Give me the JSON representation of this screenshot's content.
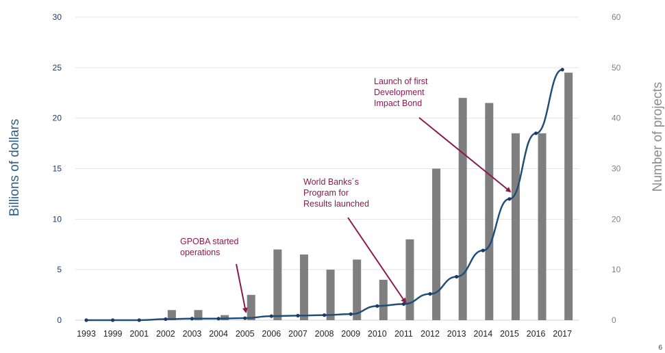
{
  "chart_data": {
    "type": "bar+line",
    "categories": [
      "1993",
      "1999",
      "2001",
      "2002",
      "2003",
      "2004",
      "2005",
      "2006",
      "2007",
      "2008",
      "2009",
      "2010",
      "2011",
      "2012",
      "2013",
      "2014",
      "2015",
      "2016",
      "2017"
    ],
    "bars": {
      "axis": "right",
      "color": "#7f7f7f",
      "values": [
        0,
        0,
        0,
        2,
        2,
        1,
        5,
        14,
        13,
        10,
        12,
        8,
        16,
        30,
        44,
        43,
        37,
        37,
        49
      ]
    },
    "line": {
      "axis": "left",
      "color": "#1f4e79",
      "values": [
        0,
        0,
        0,
        0.1,
        0.15,
        0.15,
        0.2,
        0.4,
        0.45,
        0.5,
        0.6,
        1.4,
        1.6,
        2.6,
        4.3,
        6.9,
        12.0,
        18.5,
        24.8
      ]
    },
    "ylabel_left": "Billions of dollars",
    "ylabel_right": "Number of projects",
    "ylim_left": [
      0,
      30
    ],
    "yticks_left": [
      "0",
      "5",
      "10",
      "15",
      "20",
      "25",
      "30"
    ],
    "ylim_right": [
      0,
      60
    ],
    "yticks_right": [
      "0",
      "10",
      "20",
      "30",
      "40",
      "50",
      "60"
    ],
    "grid": true,
    "annotations": [
      {
        "lines": [
          "GPOBA started",
          "operations"
        ],
        "target": "2005",
        "color": "#8b1a4a"
      },
      {
        "lines": [
          "World Banks´s",
          "Program for",
          "Results launched"
        ],
        "target": "2011",
        "color": "#8b1a4a"
      },
      {
        "lines": [
          "Launch of first",
          "Development",
          "Impact Bond"
        ],
        "target": "2015",
        "color": "#8b1a4a"
      }
    ]
  },
  "page_number": "6"
}
